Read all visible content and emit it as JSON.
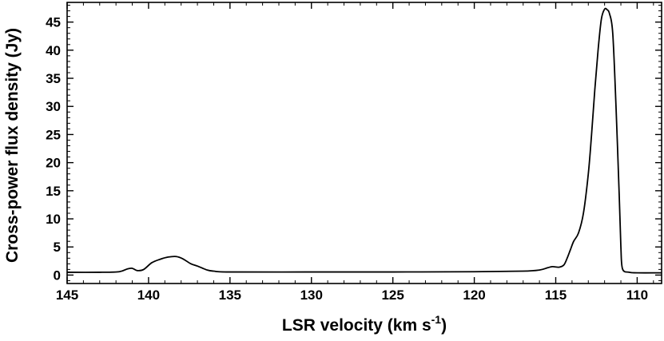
{
  "chart_data": {
    "type": "line",
    "title": "",
    "xlabel": "LSR velocity (km s",
    "xlabel_sup": "-1",
    "xlabel_suffix": ")",
    "ylabel": "Cross-power flux density (Jy)",
    "xlim": [
      145,
      108.5
    ],
    "ylim": [
      -1.5,
      48.5
    ],
    "x_reversed": true,
    "grid": false,
    "legend": "none",
    "x_ticks": [
      145,
      140,
      135,
      130,
      125,
      120,
      115,
      110
    ],
    "y_ticks": [
      0,
      5,
      10,
      15,
      20,
      25,
      30,
      35,
      40,
      45
    ],
    "series": [
      {
        "color": "#000000",
        "x": [
          145.0,
          143.0,
          141.8,
          141.3,
          141.0,
          140.7,
          140.3,
          139.8,
          139.3,
          138.8,
          138.3,
          137.9,
          137.4,
          137.0,
          136.4,
          136.0,
          135.0,
          130.0,
          125.0,
          120.0,
          117.0,
          116.0,
          115.5,
          115.2,
          114.8,
          114.5,
          114.3,
          114.1,
          113.9,
          113.6,
          113.3,
          113.0,
          112.8,
          112.6,
          112.4,
          112.2,
          112.0,
          111.85,
          111.7,
          111.5,
          111.3,
          111.1,
          111.0,
          110.9,
          110.5,
          110.0,
          108.5
        ],
        "y": [
          0.5,
          0.5,
          0.6,
          1.1,
          1.2,
          0.8,
          1.0,
          2.2,
          2.8,
          3.2,
          3.3,
          2.9,
          2.0,
          1.6,
          0.9,
          0.7,
          0.55,
          0.55,
          0.55,
          0.6,
          0.7,
          0.9,
          1.3,
          1.5,
          1.4,
          1.8,
          3.0,
          4.5,
          6.0,
          7.5,
          11.0,
          18.0,
          25.0,
          33.0,
          40.0,
          45.5,
          47.3,
          47.2,
          46.5,
          43.0,
          30.0,
          14.0,
          5.0,
          1.1,
          0.5,
          0.4,
          0.4
        ]
      }
    ]
  }
}
